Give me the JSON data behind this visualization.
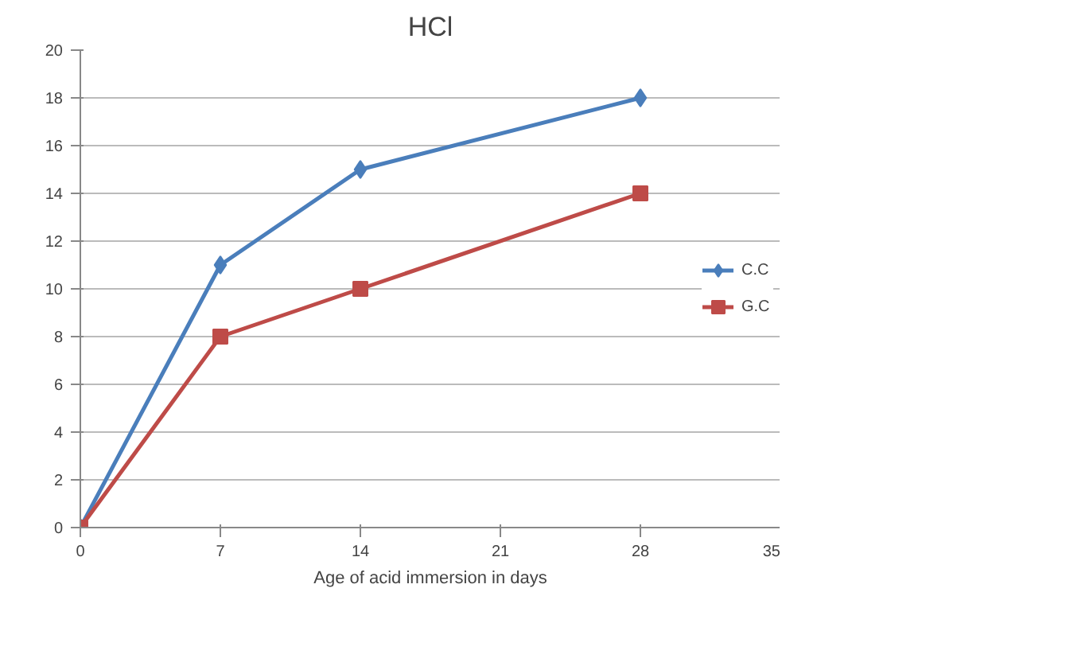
{
  "chart_data": {
    "type": "line",
    "title": "HCl",
    "xlabel": "Age of acid immersion in days",
    "x": [
      0,
      7,
      14,
      28
    ],
    "xlim": [
      0,
      35
    ],
    "xticks": [
      0,
      7,
      14,
      21,
      28,
      35
    ],
    "ylim": [
      0,
      20
    ],
    "yticks": [
      0,
      2,
      4,
      6,
      8,
      10,
      12,
      14,
      16,
      18,
      20
    ],
    "grid": "y",
    "legend": "right",
    "series": [
      {
        "name": "C.C",
        "color": "#4a7ebb",
        "values": [
          0,
          11,
          15,
          18
        ],
        "marker": "diamond"
      },
      {
        "name": "G.C",
        "color": "#be4b48",
        "values": [
          0,
          8,
          10,
          14
        ],
        "marker": "square"
      }
    ]
  }
}
